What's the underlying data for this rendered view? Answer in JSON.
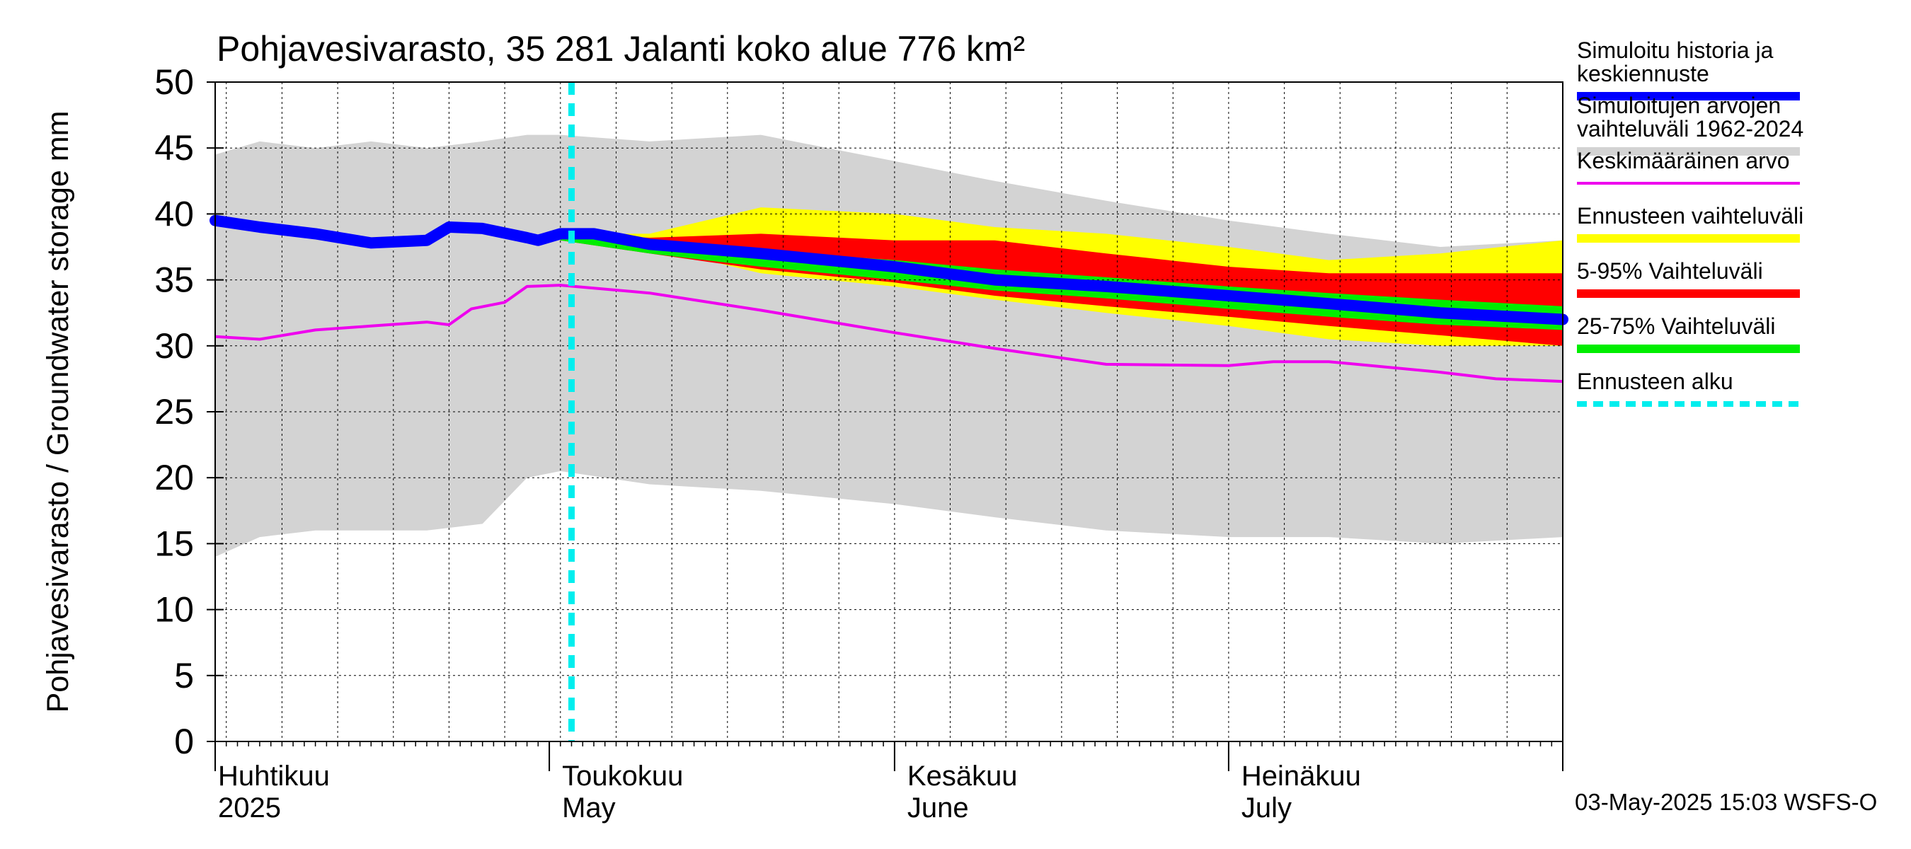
{
  "chart_data": {
    "type": "area",
    "title": "Pohjavesivarasto, 35 281 Jalanti koko alue 776 km²",
    "ylabel": "Pohjavesivarasto / Groundwater storage   mm",
    "ylim": [
      0,
      50
    ],
    "yticks": [
      0,
      5,
      10,
      15,
      20,
      25,
      30,
      35,
      40,
      45,
      50
    ],
    "xlim": [
      "2025-04-01",
      "2025-07-31"
    ],
    "grid": true,
    "legend_position": "right",
    "months": [
      {
        "date": "2025-04-01",
        "label_fi": "Huhtikuu",
        "label_en": "2025"
      },
      {
        "date": "2025-05-01",
        "label_fi": "Toukokuu",
        "label_en": "May"
      },
      {
        "date": "2025-06-01",
        "label_fi": "Kesäkuu",
        "label_en": "June"
      },
      {
        "date": "2025-07-01",
        "label_fi": "Heinäkuu",
        "label_en": "July"
      }
    ],
    "forecast_start": "2025-05-03",
    "timestamp": "03-May-2025 15:03 WSFS-O",
    "colors": {
      "history": "#0000ff",
      "range_1962_2024": "#d3d3d3",
      "mean": "#ee00ee",
      "forecast_range": "#ffff00",
      "p5_95": "#ff0000",
      "p25_75": "#00ee00",
      "forecast_start": "#00eeee"
    },
    "legend": [
      {
        "key": "history",
        "text": [
          "Simuloitu historia ja",
          "keskiennuste"
        ],
        "style": "thick"
      },
      {
        "key": "range_1962_2024",
        "text": [
          "Simuloitujen arvojen",
          "vaihteluväli 1962-2024"
        ],
        "style": "thick"
      },
      {
        "key": "mean",
        "text": [
          "Keskimääräinen arvo"
        ],
        "style": "thin"
      },
      {
        "key": "forecast_range",
        "text": [
          "Ennusteen vaihteluväli"
        ],
        "style": "thick"
      },
      {
        "key": "p5_95",
        "text": [
          "5-95% Vaihteluväli"
        ],
        "style": "thick"
      },
      {
        "key": "p25_75",
        "text": [
          "25-75% Vaihteluväli"
        ],
        "style": "thick"
      },
      {
        "key": "forecast_start",
        "text": [
          "Ennusteen alku"
        ],
        "style": "dashed"
      }
    ],
    "series": [
      {
        "id": "range_min_max",
        "name": "Simuloitujen arvojen vaihteluväli 1962-2024",
        "x": [
          "2025-04-01",
          "2025-04-05",
          "2025-04-10",
          "2025-04-15",
          "2025-04-20",
          "2025-04-25",
          "2025-04-29",
          "2025-05-02",
          "2025-05-10",
          "2025-05-20",
          "2025-06-01",
          "2025-06-10",
          "2025-06-20",
          "2025-07-01",
          "2025-07-10",
          "2025-07-20",
          "2025-07-31"
        ],
        "upper": [
          44.5,
          45.5,
          45.0,
          45.5,
          45.0,
          45.5,
          46.0,
          46.0,
          45.5,
          46.0,
          44.0,
          42.5,
          41.0,
          39.5,
          38.5,
          37.5,
          38.0
        ],
        "lower": [
          14.0,
          15.5,
          16.0,
          16.0,
          16.0,
          16.5,
          20.0,
          20.5,
          19.5,
          19.0,
          18.0,
          17.0,
          16.0,
          15.5,
          15.5,
          15.0,
          15.5
        ]
      },
      {
        "id": "forecast_range",
        "name": "Ennusteen vaihteluväli",
        "x": [
          "2025-05-02",
          "2025-05-10",
          "2025-05-20",
          "2025-06-01",
          "2025-06-10",
          "2025-06-20",
          "2025-07-01",
          "2025-07-10",
          "2025-07-20",
          "2025-07-31"
        ],
        "upper": [
          38.5,
          38.5,
          40.5,
          40.0,
          39.0,
          38.5,
          37.5,
          36.5,
          37.0,
          38.0
        ],
        "lower": [
          38.0,
          37.5,
          35.5,
          34.5,
          33.5,
          32.5,
          31.5,
          30.5,
          30.0,
          30.0
        ]
      },
      {
        "id": "p5_95",
        "name": "5-95% Vaihteluväli",
        "x": [
          "2025-05-02",
          "2025-05-10",
          "2025-05-20",
          "2025-06-01",
          "2025-06-10",
          "2025-06-20",
          "2025-07-01",
          "2025-07-10",
          "2025-07-20",
          "2025-07-31"
        ],
        "upper": [
          38.5,
          38.2,
          38.5,
          38.0,
          38.0,
          37.0,
          36.0,
          35.5,
          35.5,
          35.5
        ],
        "lower": [
          38.0,
          37.0,
          35.8,
          34.8,
          33.8,
          33.0,
          32.2,
          31.5,
          30.8,
          30.0
        ]
      },
      {
        "id": "p25_75",
        "name": "25-75% Vaihteluväli",
        "x": [
          "2025-05-02",
          "2025-05-10",
          "2025-05-20",
          "2025-06-01",
          "2025-06-10",
          "2025-06-20",
          "2025-07-01",
          "2025-07-10",
          "2025-07-20",
          "2025-07-31"
        ],
        "upper": [
          38.5,
          37.8,
          37.2,
          36.5,
          35.8,
          35.2,
          34.5,
          34.0,
          33.5,
          33.0
        ],
        "lower": [
          38.0,
          37.0,
          36.0,
          35.0,
          34.2,
          33.6,
          32.8,
          32.2,
          31.6,
          31.2
        ]
      },
      {
        "id": "mean",
        "name": "Keskimääräinen arvo",
        "x": [
          "2025-04-01",
          "2025-04-05",
          "2025-04-10",
          "2025-04-15",
          "2025-04-20",
          "2025-04-22",
          "2025-04-24",
          "2025-04-27",
          "2025-04-29",
          "2025-05-02",
          "2025-05-10",
          "2025-05-20",
          "2025-06-01",
          "2025-06-10",
          "2025-06-20",
          "2025-07-01",
          "2025-07-05",
          "2025-07-10",
          "2025-07-20",
          "2025-07-25",
          "2025-07-31"
        ],
        "y": [
          30.7,
          30.5,
          31.2,
          31.5,
          31.8,
          31.6,
          32.8,
          33.3,
          34.5,
          34.6,
          34.0,
          32.7,
          31.0,
          29.8,
          28.6,
          28.5,
          28.8,
          28.8,
          28.0,
          27.5,
          27.3
        ]
      },
      {
        "id": "history",
        "name": "Simuloitu historia ja keskiennuste",
        "x": [
          "2025-04-01",
          "2025-04-05",
          "2025-04-10",
          "2025-04-15",
          "2025-04-20",
          "2025-04-22",
          "2025-04-25",
          "2025-04-29",
          "2025-04-30",
          "2025-05-02",
          "2025-05-05",
          "2025-05-10",
          "2025-05-20",
          "2025-06-01",
          "2025-06-10",
          "2025-06-20",
          "2025-07-01",
          "2025-07-10",
          "2025-07-20",
          "2025-07-31"
        ],
        "y": [
          39.5,
          39.0,
          38.5,
          37.8,
          38.0,
          39.0,
          38.9,
          38.2,
          38.0,
          38.5,
          38.5,
          37.7,
          37.0,
          36.0,
          35.0,
          34.5,
          33.8,
          33.2,
          32.5,
          32.0
        ]
      }
    ]
  }
}
